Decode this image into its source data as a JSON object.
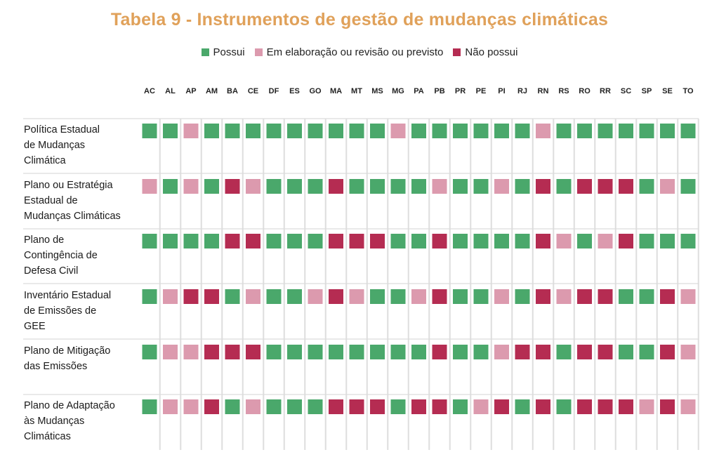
{
  "chart_data": {
    "type": "table",
    "title": "Tabela 9 - Instrumentos de gestão de mudanças climáticas",
    "legend": [
      {
        "key": "P",
        "label": "Possui",
        "color": "#4aa86b"
      },
      {
        "key": "E",
        "label": "Em elaboração ou revisão ou previsto",
        "color": "#dc9aae"
      },
      {
        "key": "N",
        "label": "Não possui",
        "color": "#b52c52"
      }
    ],
    "columns": [
      "AC",
      "AL",
      "AP",
      "AM",
      "BA",
      "CE",
      "DF",
      "ES",
      "GO",
      "MA",
      "MT",
      "MS",
      "MG",
      "PA",
      "PB",
      "PR",
      "PE",
      "PI",
      "RJ",
      "RN",
      "RS",
      "RO",
      "RR",
      "SC",
      "SP",
      "SE",
      "TO"
    ],
    "rows": [
      {
        "label": [
          "Política Estadual",
          "de Mudanças",
          "Climática"
        ],
        "values": [
          "P",
          "P",
          "E",
          "P",
          "P",
          "P",
          "P",
          "P",
          "P",
          "P",
          "P",
          "P",
          "E",
          "P",
          "P",
          "P",
          "P",
          "P",
          "P",
          "E",
          "P",
          "P",
          "P",
          "P",
          "P",
          "P",
          "P"
        ]
      },
      {
        "label": [
          "Plano ou Estratégia",
          "Estadual de",
          "Mudanças Climáticas"
        ],
        "values": [
          "E",
          "P",
          "E",
          "P",
          "N",
          "E",
          "P",
          "P",
          "P",
          "N",
          "P",
          "P",
          "P",
          "P",
          "E",
          "P",
          "P",
          "E",
          "P",
          "N",
          "P",
          "N",
          "N",
          "N",
          "P",
          "E",
          "P"
        ]
      },
      {
        "label": [
          "Plano de",
          "Contingência de",
          "Defesa Civil"
        ],
        "values": [
          "P",
          "P",
          "P",
          "P",
          "N",
          "N",
          "P",
          "P",
          "P",
          "N",
          "N",
          "N",
          "P",
          "P",
          "N",
          "P",
          "P",
          "P",
          "P",
          "N",
          "E",
          "P",
          "E",
          "N",
          "P",
          "P",
          "P"
        ]
      },
      {
        "label": [
          "Inventário Estadual",
          "de Emissões de",
          "GEE"
        ],
        "values": [
          "P",
          "E",
          "N",
          "N",
          "P",
          "E",
          "P",
          "P",
          "E",
          "N",
          "E",
          "P",
          "P",
          "E",
          "N",
          "P",
          "P",
          "E",
          "P",
          "N",
          "E",
          "N",
          "N",
          "P",
          "P",
          "N",
          "E"
        ]
      },
      {
        "label": [
          "Plano de Mitigação",
          "das Emissões"
        ],
        "values": [
          "P",
          "E",
          "E",
          "N",
          "N",
          "N",
          "P",
          "P",
          "P",
          "P",
          "P",
          "P",
          "P",
          "P",
          "N",
          "P",
          "P",
          "E",
          "N",
          "N",
          "P",
          "N",
          "N",
          "P",
          "P",
          "N",
          "E"
        ]
      },
      {
        "label": [
          "Plano de Adaptação",
          "às Mudanças",
          "Climáticas"
        ],
        "values": [
          "P",
          "E",
          "E",
          "N",
          "P",
          "E",
          "P",
          "P",
          "P",
          "N",
          "N",
          "N",
          "P",
          "N",
          "N",
          "P",
          "E",
          "N",
          "P",
          "N",
          "P",
          "N",
          "N",
          "N",
          "E",
          "N",
          "E"
        ]
      }
    ]
  }
}
